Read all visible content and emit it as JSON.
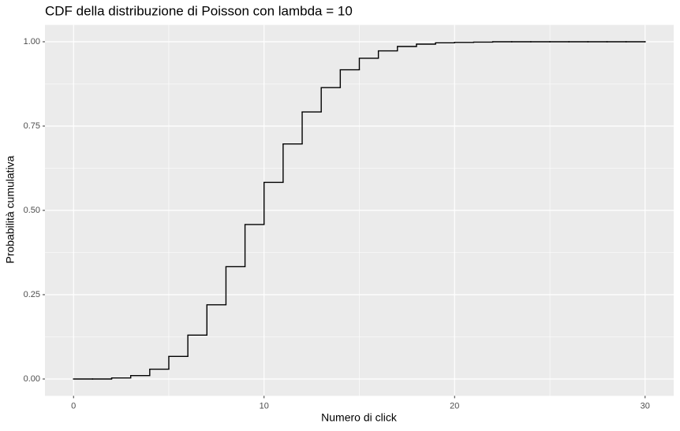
{
  "chart_data": {
    "type": "step",
    "title": "CDF della distribuzione di Poisson con lambda = 10",
    "x_label": "Numero di click",
    "y_label": "Probabilità cumulativa",
    "x": [
      0,
      1,
      2,
      3,
      4,
      5,
      6,
      7,
      8,
      9,
      10,
      11,
      12,
      13,
      14,
      15,
      16,
      17,
      18,
      19,
      20,
      21,
      22,
      23,
      24,
      25,
      26,
      27,
      28,
      29,
      30
    ],
    "series": [
      {
        "color": "#000000",
        "values": [
          0.0,
          0.0,
          0.003,
          0.01,
          0.029,
          0.067,
          0.13,
          0.22,
          0.333,
          0.458,
          0.583,
          0.697,
          0.792,
          0.864,
          0.917,
          0.951,
          0.973,
          0.986,
          0.993,
          0.997,
          0.998,
          0.999,
          1.0,
          1.0,
          1.0,
          1.0,
          1.0,
          1.0,
          1.0,
          1.0,
          1.0
        ]
      }
    ],
    "xlim": [
      -1.5,
      31.5
    ],
    "ylim": [
      -0.05,
      1.05
    ],
    "xticks": [
      0,
      10,
      20,
      30
    ],
    "yticks": [
      {
        "value": 0,
        "label": "0.00"
      },
      {
        "value": 0.25,
        "label": "0.25"
      },
      {
        "value": 0.5,
        "label": "0.50"
      },
      {
        "value": 0.75,
        "label": "0.75"
      },
      {
        "value": 1,
        "label": "1.00"
      }
    ],
    "grid": true
  }
}
